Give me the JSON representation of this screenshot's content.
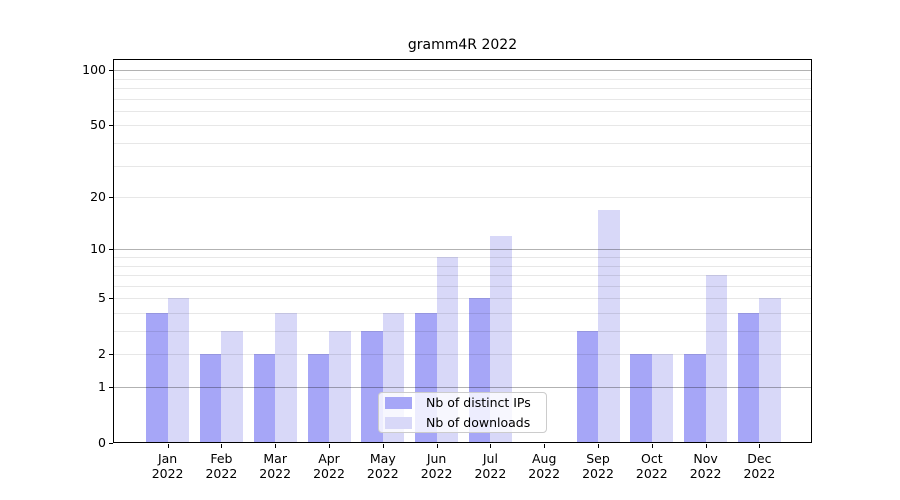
{
  "figure": {
    "title": "gramm4R 2022",
    "background": "#ffffff"
  },
  "chart_data": {
    "type": "bar",
    "title": "gramm4R 2022",
    "xlabel": "",
    "ylabel": "",
    "yscale": "log1p",
    "ylim": [
      0,
      115
    ],
    "categories": [
      "Jan 2022",
      "Feb 2022",
      "Mar 2022",
      "Apr 2022",
      "May 2022",
      "Jun 2022",
      "Jul 2022",
      "Aug 2022",
      "Sep 2022",
      "Oct 2022",
      "Nov 2022",
      "Dec 2022"
    ],
    "series": [
      {
        "key": "ips",
        "name": "Nb of distinct IPs",
        "color": "#a6a6f7",
        "values": [
          4,
          2,
          2,
          2,
          3,
          4,
          5,
          0,
          3,
          2,
          2,
          4
        ]
      },
      {
        "key": "downloads",
        "name": "Nb of downloads",
        "color": "#d8d8f8",
        "values": [
          5,
          3,
          4,
          3,
          4,
          9,
          12,
          0,
          17,
          2,
          7,
          5
        ]
      }
    ],
    "ytick_labels": [
      0,
      1,
      2,
      5,
      10,
      20,
      50,
      100
    ],
    "grid": "horizontal",
    "grid_major": [
      1,
      10,
      100
    ],
    "grid_minor": [
      2,
      3,
      4,
      5,
      6,
      7,
      8,
      9,
      20,
      30,
      40,
      50,
      60,
      70,
      80,
      90
    ],
    "grid_major_color": "rgba(0,0,0,0.30)",
    "grid_minor_color": "rgba(0,0,0,0.095)",
    "legend_position": "lower center"
  },
  "legend": {
    "items": [
      {
        "label": "Nb of distinct IPs"
      },
      {
        "label": "Nb of downloads"
      }
    ]
  }
}
